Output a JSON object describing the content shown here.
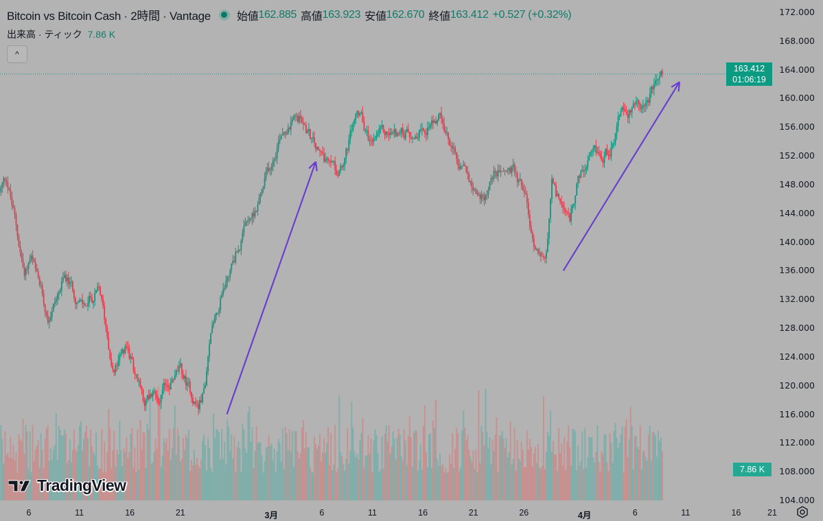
{
  "legend": {
    "title": "Bitcoin vs Bitcoin Cash · 2時間 · Vantage",
    "open_label": "始値",
    "open": "162.885",
    "high_label": "高値",
    "high": "163.923",
    "low_label": "安値",
    "low": "162.670",
    "close_label": "終値",
    "close": "163.412",
    "change": "+0.527 (+0.32%)"
  },
  "volume_legend": {
    "label": "出来高 · ティック",
    "value": "7.86 K"
  },
  "collapse_icon": "chevron-up-icon",
  "price_badge": {
    "price": "163.412",
    "countdown": "01:06:19"
  },
  "volume_badge": "7.86 K",
  "logo": "TradingView",
  "colors": {
    "up": "#16917c",
    "down": "#e8394a",
    "arrow": "#6a3fd0",
    "badge": "#0b9a82",
    "background": "#b3b3b3"
  },
  "chart_data": {
    "type": "candlestick",
    "title": "Bitcoin vs Bitcoin Cash · 2時間 · Vantage",
    "y_ticks": [
      "172.000",
      "168.000",
      "164.000",
      "160.000",
      "156.000",
      "152.000",
      "148.000",
      "144.000",
      "140.000",
      "136.000",
      "132.000",
      "128.000",
      "124.000",
      "120.000",
      "116.000",
      "112.000",
      "108.000",
      "104.000"
    ],
    "ylim": [
      104,
      172
    ],
    "x_unit": "day index (Feb 1 = 1)",
    "x_ticks": [
      {
        "day": 6,
        "label": "6"
      },
      {
        "day": 11,
        "label": "11"
      },
      {
        "day": 16,
        "label": "16"
      },
      {
        "day": 21,
        "label": "21"
      },
      {
        "day": 30,
        "label": "3月",
        "bold": true
      },
      {
        "day": 35,
        "label": "6"
      },
      {
        "day": 40,
        "label": "11"
      },
      {
        "day": 45,
        "label": "16"
      },
      {
        "day": 50,
        "label": "21"
      },
      {
        "day": 55,
        "label": "26"
      },
      {
        "day": 61,
        "label": "4月",
        "bold": true
      },
      {
        "day": 66,
        "label": "6"
      },
      {
        "day": 71,
        "label": "11"
      },
      {
        "day": 76,
        "label": "16"
      },
      {
        "day": 81,
        "label": "21"
      }
    ],
    "xlim": [
      3.1,
      79.2
    ],
    "price_path": [
      [
        3.1,
        147
      ],
      [
        3.8,
        149
      ],
      [
        4.5,
        144
      ],
      [
        5.5,
        136
      ],
      [
        6.2,
        138
      ],
      [
        6.9,
        134
      ],
      [
        7.9,
        130
      ],
      [
        9.6,
        135
      ],
      [
        11.3,
        131
      ],
      [
        13.0,
        133
      ],
      [
        14.4,
        122
      ],
      [
        15.7,
        125
      ],
      [
        17.4,
        118
      ],
      [
        19.1,
        119
      ],
      [
        20.9,
        122
      ],
      [
        22.8,
        117
      ],
      [
        23.5,
        120
      ],
      [
        24.2,
        129
      ],
      [
        25.6,
        135
      ],
      [
        26.6,
        139
      ],
      [
        28.3,
        144
      ],
      [
        29.3,
        148
      ],
      [
        30.0,
        151
      ],
      [
        31.0,
        156
      ],
      [
        33.0,
        157
      ],
      [
        34.7,
        152
      ],
      [
        36.4,
        150
      ],
      [
        37.5,
        153
      ],
      [
        38.5,
        158
      ],
      [
        39.8,
        154
      ],
      [
        41.9,
        155
      ],
      [
        43.9,
        155
      ],
      [
        46.6,
        158
      ],
      [
        48.0,
        152
      ],
      [
        50.0,
        148
      ],
      [
        51.0,
        146
      ],
      [
        52.1,
        150
      ],
      [
        53.8,
        150
      ],
      [
        55.1,
        147
      ],
      [
        55.8,
        140
      ],
      [
        57.2,
        138
      ],
      [
        57.8,
        148
      ],
      [
        58.8,
        144
      ],
      [
        59.5,
        142
      ],
      [
        60.2,
        148
      ],
      [
        61.6,
        151
      ],
      [
        63.6,
        153
      ],
      [
        64.6,
        158
      ],
      [
        65.6,
        159
      ],
      [
        66.7,
        159
      ],
      [
        67.7,
        161
      ],
      [
        68.7,
        163.412
      ]
    ],
    "last_price": 163.412,
    "last_volume": "7.86 K",
    "annotations": [
      {
        "type": "arrow",
        "from": [
          25.6,
          116
        ],
        "to": [
          34.4,
          151.2
        ]
      },
      {
        "type": "arrow",
        "from": [
          58.9,
          136
        ],
        "to": [
          70.4,
          162.3
        ]
      }
    ],
    "grid": false
  }
}
